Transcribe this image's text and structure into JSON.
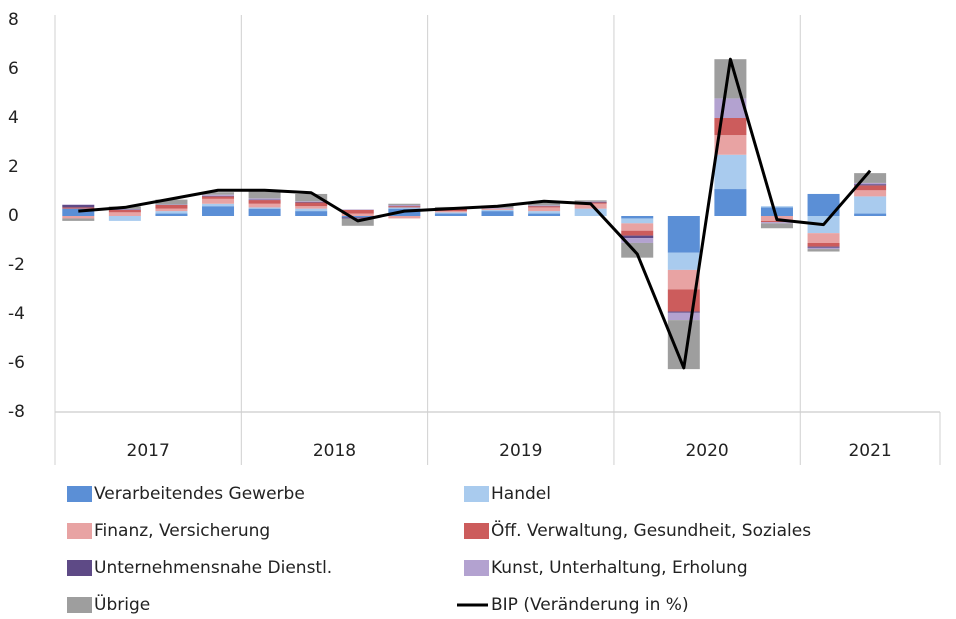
{
  "chart_data": {
    "type": "bar",
    "stacked": true,
    "categories": [
      null,
      null,
      null,
      null,
      null,
      null,
      null,
      null,
      null,
      null,
      null,
      null,
      null,
      null,
      null,
      null,
      null,
      null,
      null
    ],
    "category_groups": [
      {
        "label": "2017",
        "size": 4
      },
      {
        "label": "2018",
        "size": 4
      },
      {
        "label": "2019",
        "size": 4
      },
      {
        "label": "2020",
        "size": 4
      },
      {
        "label": "2021",
        "size": 3
      }
    ],
    "ylim": [
      -8,
      8
    ],
    "yticks": [
      -8,
      -6,
      -4,
      -2,
      0,
      2,
      4,
      6,
      8
    ],
    "series": [
      {
        "name": "Verarbeitendes Gewerbe",
        "color": "#5b8fd6",
        "values": [
          0.3,
          0,
          0.1,
          0.4,
          0.3,
          0.2,
          -0.05,
          0.3,
          0.1,
          0.2,
          0.1,
          0,
          -0.1,
          -1.5,
          1.1,
          0.35,
          0.9,
          0.1,
          null
        ]
      },
      {
        "name": "Handel",
        "color": "#a9cbee",
        "values": [
          0,
          -0.2,
          0.1,
          0.1,
          0.05,
          0.1,
          0,
          0.05,
          0.05,
          0.05,
          0.1,
          0.3,
          -0.2,
          -0.7,
          1.4,
          0.05,
          -0.7,
          0.7,
          null
        ]
      },
      {
        "name": "Finanz, Versicherung",
        "color": "#e8a3a3",
        "values": [
          -0.1,
          0.15,
          0.1,
          0.2,
          0.15,
          0.1,
          0.1,
          -0.1,
          0.05,
          0.05,
          0.15,
          0.2,
          -0.3,
          -0.8,
          0.8,
          -0.2,
          -0.4,
          0.25,
          null
        ]
      },
      {
        "name": "Öff. Verwaltung, Gesundheit, Soziales",
        "color": "#cc5c5c",
        "values": [
          0.05,
          0.1,
          0.15,
          0.1,
          0.15,
          0.15,
          0.15,
          0.05,
          0.1,
          0,
          0.05,
          0.05,
          -0.2,
          -0.9,
          0.7,
          -0.05,
          -0.15,
          0.2,
          null
        ]
      },
      {
        "name": "Unternehmensnahe Dienstl.",
        "color": "#5e4a86",
        "values": [
          0.1,
          0.02,
          0,
          0.02,
          0.02,
          0.02,
          -0.05,
          0.02,
          0,
          0,
          0.02,
          0.02,
          -0.1,
          -0.05,
          0,
          0,
          -0.05,
          0.05,
          null
        ]
      },
      {
        "name": "Kunst, Unterhaltung, Erholung",
        "color": "#b3a2d0",
        "values": [
          0.02,
          0.02,
          0.02,
          0.05,
          0.05,
          0.03,
          0.02,
          0.03,
          0.02,
          0.03,
          0.02,
          0.02,
          -0.2,
          -0.3,
          0.8,
          -0.05,
          -0.05,
          0.05,
          null
        ]
      },
      {
        "name": "Übrige",
        "color": "#9e9e9e",
        "values": [
          -0.1,
          0.1,
          0.2,
          0.1,
          0.3,
          0.3,
          -0.3,
          0.05,
          0.05,
          0.1,
          0.1,
          0.05,
          -0.6,
          -2.0,
          1.6,
          -0.2,
          -0.1,
          0.4,
          null
        ]
      },
      {
        "name": "BIP (Veränderung in %)",
        "type": "line",
        "color": "#000000",
        "values": [
          0.2,
          0.35,
          0.7,
          1.05,
          1.05,
          0.95,
          -0.2,
          0.2,
          0.3,
          0.4,
          0.6,
          0.5,
          -1.55,
          -6.2,
          6.4,
          -0.15,
          -0.35,
          1.85,
          null
        ]
      }
    ]
  }
}
